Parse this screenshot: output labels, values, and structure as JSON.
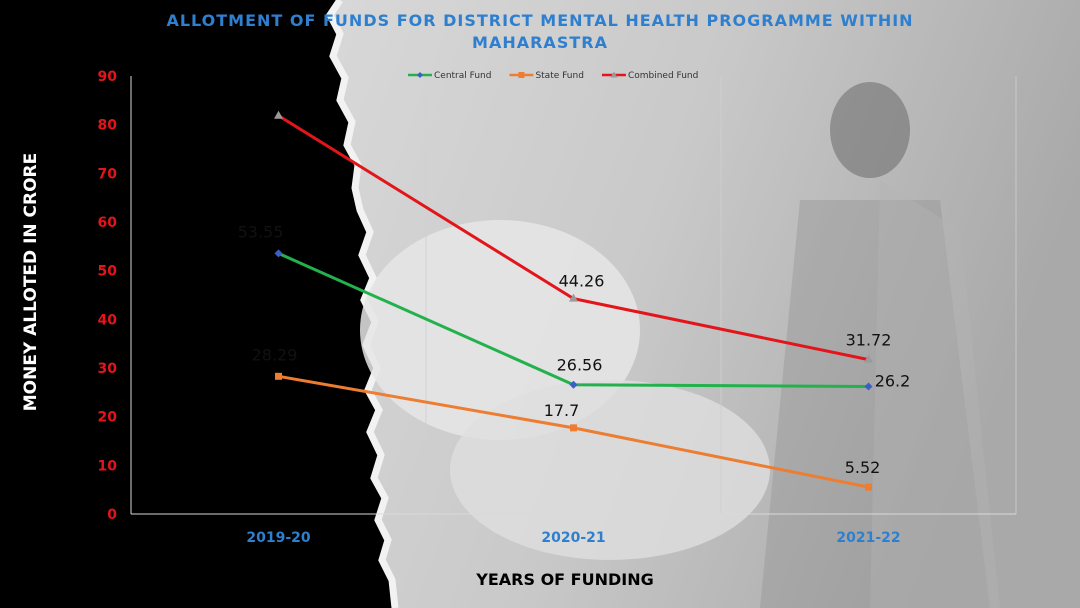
{
  "chart_data": {
    "type": "line",
    "title": "ALLOTMENT OF FUNDS FOR DISTRICT MENTAL HEALTH PROGRAMME WITHIN MAHARASTRA",
    "title_line1": "ALLOTMENT OF FUNDS FOR DISTRICT MENTAL HEALTH PROGRAMME WITHIN",
    "title_line2": "MAHARASTRA",
    "xlabel": "YEARS OF FUNDING",
    "ylabel": "MONEY ALLOTED IN CRORE",
    "categories": [
      "2019-20",
      "2020-21",
      "2021-22"
    ],
    "ylim": [
      0,
      90
    ],
    "yticks": [
      0,
      10,
      20,
      30,
      40,
      50,
      60,
      70,
      80,
      90
    ],
    "grid": "vertical",
    "legend_position": "top-center",
    "series": [
      {
        "name": "Central Fund",
        "color": "#22b14c",
        "marker_color": "#3b5fc4",
        "marker": "diamond",
        "values": [
          53.55,
          26.56,
          26.2
        ],
        "labels": [
          "53.55",
          "26.56",
          "26.2"
        ]
      },
      {
        "name": "State Fund",
        "color": "#ed7d31",
        "marker_color": "#ed7d31",
        "marker": "square",
        "values": [
          28.29,
          17.7,
          5.52
        ],
        "labels": [
          "28.29",
          "17.7",
          "5.52"
        ]
      },
      {
        "name": "Combined Fund",
        "color": "#e3151a",
        "marker_color": "#9a9a9a",
        "marker": "triangle",
        "values": [
          81.84,
          44.26,
          31.72
        ],
        "labels": [
          null,
          "44.26",
          "31.72"
        ]
      }
    ]
  },
  "colors": {
    "title": "#2f7fcf",
    "y_tick": "#e3151a",
    "x_tick": "#2f7fcf"
  }
}
